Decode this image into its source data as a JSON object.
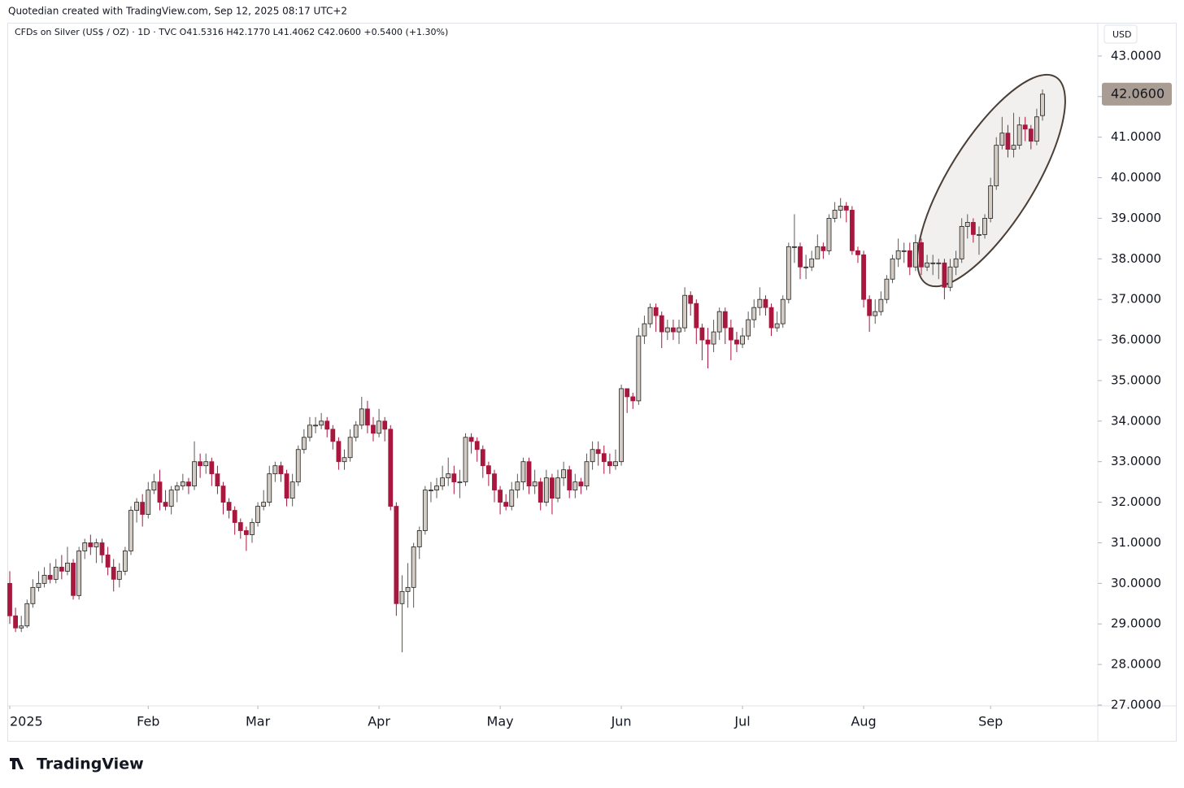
{
  "header": "Quotedian created with TradingView.com, Sep 12, 2025 08:17 UTC+2",
  "footer": "TradingView",
  "chart_data": {
    "type": "candlestick",
    "legend": "CFDs on Silver (US$ / OZ) · 1D · TVC  O41.5316  H42.1770  L41.4062  C42.0600  +0.5400 (+1.30%)",
    "currency": "USD",
    "up_color": "#d3ccc4",
    "down_color": "#a8173d",
    "ylim": [
      27.04,
      43.78
    ],
    "yticks": [
      {
        "value": 27,
        "label": "27.0000"
      },
      {
        "value": 28,
        "label": "28.0000"
      },
      {
        "value": 29,
        "label": "29.0000"
      },
      {
        "value": 30,
        "label": "30.0000"
      },
      {
        "value": 31,
        "label": "31.0000"
      },
      {
        "value": 32,
        "label": "32.0000"
      },
      {
        "value": 33,
        "label": "33.0000"
      },
      {
        "value": 34,
        "label": "34.0000"
      },
      {
        "value": 35,
        "label": "35.0000"
      },
      {
        "value": 36,
        "label": "36.0000"
      },
      {
        "value": 37,
        "label": "37.0000"
      },
      {
        "value": 38,
        "label": "38.0000"
      },
      {
        "value": 39,
        "label": "39.0000"
      },
      {
        "value": 40,
        "label": "40.0000"
      },
      {
        "value": 41,
        "label": "41.0000"
      },
      {
        "value": 42,
        "label": "42.0000"
      },
      {
        "value": 43,
        "label": "43.0000"
      }
    ],
    "xticks": [
      {
        "value": 0,
        "label": "2025"
      },
      {
        "value": 24,
        "label": "Feb"
      },
      {
        "value": 43,
        "label": "Mar"
      },
      {
        "value": 64,
        "label": "Apr"
      },
      {
        "value": 85,
        "label": "May"
      },
      {
        "value": 106,
        "label": "Jun"
      },
      {
        "value": 127,
        "label": "Jul"
      },
      {
        "value": 148,
        "label": "Aug"
      },
      {
        "value": 170,
        "label": "Sep"
      }
    ],
    "last_price": {
      "value": 42.06,
      "label": "42.0600"
    },
    "open": [
      30.0,
      29.2,
      28.9,
      28.95,
      29.5,
      29.9,
      30.0,
      30.2,
      30.1,
      30.4,
      30.3,
      30.5,
      29.7,
      30.8,
      31.0,
      30.9,
      31.0,
      30.7,
      30.4,
      30.1,
      30.3,
      30.8,
      31.8,
      32.0,
      31.7,
      32.3,
      32.5,
      32.0,
      31.9,
      32.3,
      32.4,
      32.5,
      32.4,
      33.0,
      32.9,
      33.0,
      32.7,
      32.4,
      32.0,
      31.8,
      31.5,
      31.3,
      31.2,
      31.5,
      31.9,
      32.0,
      32.7,
      32.9,
      32.7,
      32.1,
      32.5,
      33.3,
      33.6,
      33.9,
      33.9,
      34.0,
      33.8,
      33.5,
      33.0,
      33.1,
      33.6,
      33.9,
      34.3,
      33.9,
      33.7,
      34.0,
      33.8,
      31.9,
      29.5,
      29.8,
      29.9,
      30.9,
      31.3,
      32.3,
      32.3,
      32.4,
      32.6,
      32.7,
      32.5,
      32.5,
      33.6,
      33.5,
      33.3,
      32.9,
      32.7,
      32.3,
      32.0,
      31.9,
      32.3,
      32.5,
      33.0,
      32.4,
      32.5,
      32.0,
      32.6,
      32.1,
      32.6,
      32.8,
      32.3,
      32.5,
      32.4,
      33.0,
      33.3,
      33.2,
      33.0,
      32.9,
      33.0,
      34.8,
      34.6,
      34.5,
      36.1,
      36.4,
      36.8,
      36.6,
      36.2,
      36.3,
      36.2,
      36.3,
      37.1,
      36.9,
      36.3,
      36.0,
      35.9,
      36.2,
      36.7,
      36.3,
      36.0,
      35.9,
      36.1,
      36.5,
      36.8,
      37.0,
      36.8,
      36.3,
      36.4,
      37.0,
      38.3,
      38.3,
      37.8,
      37.8,
      38.0,
      38.3,
      38.2,
      39.0,
      39.2,
      39.3,
      39.2,
      38.2,
      38.1,
      37.0,
      36.6,
      36.7,
      37.0,
      37.5,
      38.0,
      38.2,
      38.2,
      37.8,
      38.4,
      37.8,
      37.9,
      37.9,
      37.9,
      37.3,
      37.8,
      38.0,
      38.8,
      38.9,
      38.6,
      38.6,
      39.0,
      39.8,
      40.8,
      41.1,
      40.7,
      40.8,
      41.3,
      41.2,
      40.9,
      41.5316
    ],
    "high": [
      30.3,
      29.4,
      29.2,
      29.6,
      30.1,
      30.3,
      30.4,
      30.5,
      30.6,
      30.7,
      30.9,
      30.6,
      30.9,
      31.1,
      31.2,
      31.1,
      31.1,
      30.9,
      30.6,
      30.5,
      30.9,
      31.9,
      32.1,
      32.2,
      32.5,
      32.7,
      32.8,
      32.3,
      32.4,
      32.5,
      32.7,
      32.6,
      33.5,
      33.2,
      33.2,
      33.1,
      32.9,
      32.5,
      32.1,
      31.9,
      31.6,
      31.4,
      31.6,
      32.0,
      32.3,
      32.9,
      33.0,
      33.0,
      32.8,
      32.7,
      33.4,
      33.8,
      34.1,
      34.1,
      34.2,
      34.1,
      33.9,
      33.6,
      33.3,
      33.8,
      34.0,
      34.6,
      34.5,
      34.1,
      34.3,
      34.1,
      33.9,
      32.0,
      30.2,
      30.5,
      31.0,
      31.4,
      32.4,
      32.5,
      32.6,
      32.9,
      33.1,
      32.9,
      32.8,
      33.7,
      33.7,
      33.6,
      33.4,
      33.0,
      32.8,
      32.4,
      32.2,
      32.5,
      32.7,
      33.1,
      33.1,
      32.8,
      32.6,
      32.8,
      32.7,
      32.8,
      33.0,
      32.9,
      32.7,
      32.6,
      33.2,
      33.5,
      33.5,
      33.4,
      33.2,
      33.3,
      34.9,
      34.8,
      34.7,
      36.3,
      36.6,
      36.9,
      36.9,
      36.7,
      36.5,
      36.5,
      36.5,
      37.3,
      37.2,
      37.0,
      36.4,
      36.3,
      36.5,
      36.8,
      36.8,
      36.5,
      36.2,
      36.3,
      36.7,
      37.0,
      37.3,
      37.1,
      36.9,
      36.7,
      37.1,
      38.4,
      39.1,
      38.4,
      38.1,
      38.2,
      38.6,
      38.4,
      39.1,
      39.4,
      39.5,
      39.4,
      39.3,
      38.3,
      38.2,
      37.1,
      37.0,
      37.2,
      37.6,
      38.1,
      38.5,
      38.4,
      38.4,
      38.6,
      38.5,
      38.1,
      38.1,
      38.0,
      38.0,
      38.0,
      38.2,
      39.0,
      39.1,
      39.0,
      38.8,
      39.1,
      40.0,
      41.0,
      41.5,
      41.3,
      41.6,
      41.5,
      41.5,
      41.3,
      41.7,
      42.177
    ],
    "low": [
      29.0,
      28.8,
      28.8,
      28.9,
      29.4,
      29.8,
      29.9,
      30.0,
      30.0,
      30.1,
      30.2,
      29.6,
      29.6,
      30.6,
      30.7,
      30.5,
      30.5,
      30.2,
      29.8,
      29.9,
      30.2,
      30.7,
      31.5,
      31.4,
      31.6,
      32.2,
      31.8,
      31.8,
      31.7,
      32.0,
      32.3,
      32.2,
      32.3,
      32.6,
      32.7,
      32.4,
      32.2,
      31.7,
      31.6,
      31.2,
      31.1,
      30.8,
      31.0,
      31.4,
      31.8,
      31.9,
      32.5,
      32.5,
      31.9,
      31.9,
      32.4,
      33.2,
      33.5,
      33.7,
      33.8,
      33.6,
      33.3,
      32.8,
      32.8,
      33.0,
      33.5,
      33.8,
      33.7,
      33.5,
      33.6,
      33.5,
      31.8,
      29.2,
      28.3,
      29.4,
      29.4,
      30.6,
      31.2,
      32.0,
      32.1,
      32.3,
      32.4,
      32.2,
      32.1,
      32.4,
      33.2,
      33.0,
      32.6,
      32.4,
      32.0,
      31.7,
      31.8,
      31.8,
      32.1,
      32.3,
      32.2,
      32.2,
      31.8,
      31.9,
      31.7,
      32.0,
      32.4,
      32.1,
      32.1,
      32.2,
      32.3,
      32.8,
      32.9,
      32.7,
      32.7,
      32.8,
      32.9,
      34.2,
      34.3,
      34.4,
      35.9,
      36.3,
      36.2,
      35.8,
      36.0,
      36.0,
      35.9,
      36.2,
      36.6,
      35.9,
      35.5,
      35.3,
      35.7,
      36.0,
      35.9,
      35.5,
      35.7,
      35.8,
      36.0,
      36.3,
      36.6,
      36.6,
      36.1,
      36.2,
      36.3,
      36.9,
      37.9,
      37.5,
      37.5,
      37.7,
      38.0,
      38.0,
      38.1,
      38.9,
      39.0,
      38.9,
      38.1,
      37.9,
      36.8,
      36.2,
      36.4,
      36.6,
      36.9,
      37.4,
      37.8,
      37.9,
      37.6,
      37.7,
      37.6,
      37.7,
      37.6,
      37.5,
      37.0,
      37.2,
      37.6,
      37.9,
      38.5,
      38.4,
      38.1,
      38.5,
      38.9,
      39.7,
      40.7,
      40.5,
      40.5,
      40.7,
      40.9,
      40.7,
      40.8,
      41.4062
    ],
    "close": [
      29.2,
      28.9,
      28.95,
      29.5,
      29.9,
      30.0,
      30.2,
      30.1,
      30.4,
      30.3,
      30.5,
      29.7,
      30.8,
      31.0,
      30.9,
      31.0,
      30.7,
      30.4,
      30.1,
      30.3,
      30.8,
      31.8,
      32.0,
      31.7,
      32.3,
      32.5,
      32.0,
      31.9,
      32.3,
      32.4,
      32.5,
      32.4,
      33.0,
      32.9,
      33.0,
      32.7,
      32.4,
      32.0,
      31.8,
      31.5,
      31.3,
      31.2,
      31.5,
      31.9,
      32.0,
      32.7,
      32.9,
      32.7,
      32.1,
      32.5,
      33.3,
      33.6,
      33.9,
      33.9,
      34.0,
      33.8,
      33.5,
      33.0,
      33.1,
      33.6,
      33.9,
      34.3,
      33.9,
      33.7,
      34.0,
      33.8,
      31.9,
      29.5,
      29.8,
      29.9,
      30.9,
      31.3,
      32.3,
      32.3,
      32.4,
      32.6,
      32.7,
      32.5,
      32.5,
      33.6,
      33.5,
      33.3,
      32.9,
      32.7,
      32.3,
      32.0,
      31.9,
      32.3,
      32.5,
      33.0,
      32.4,
      32.5,
      32.0,
      32.6,
      32.1,
      32.6,
      32.8,
      32.3,
      32.5,
      32.4,
      33.0,
      33.3,
      33.2,
      33.0,
      32.9,
      33.0,
      34.8,
      34.6,
      34.5,
      36.1,
      36.4,
      36.8,
      36.6,
      36.2,
      36.3,
      36.2,
      36.3,
      37.1,
      36.9,
      36.3,
      36.0,
      35.9,
      36.2,
      36.7,
      36.3,
      36.0,
      35.9,
      36.1,
      36.5,
      36.8,
      37.0,
      36.8,
      36.3,
      36.4,
      37.0,
      38.3,
      38.3,
      37.8,
      37.8,
      38.0,
      38.3,
      38.2,
      39.0,
      39.2,
      39.3,
      39.2,
      38.2,
      38.1,
      37.0,
      36.6,
      36.7,
      37.0,
      37.5,
      38.0,
      38.2,
      38.2,
      37.8,
      38.4,
      37.8,
      37.9,
      37.9,
      37.9,
      37.3,
      37.8,
      38.0,
      38.8,
      38.9,
      38.6,
      38.6,
      39.0,
      39.8,
      40.8,
      41.1,
      40.7,
      40.8,
      41.3,
      41.2,
      40.9,
      41.5,
      42.06
    ]
  }
}
